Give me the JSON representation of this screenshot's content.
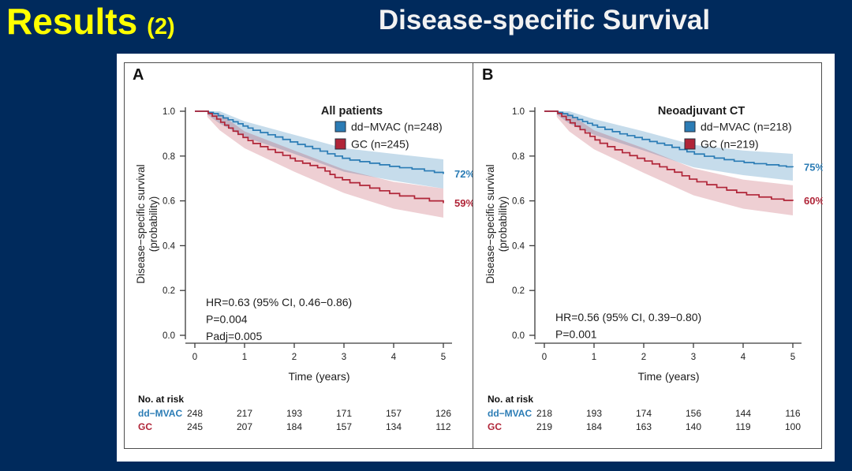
{
  "slide": {
    "title_left": "Results",
    "title_left_suffix": "(2)",
    "title_right": "Disease-specific Survival"
  },
  "colors": {
    "background": "#002a5c",
    "title_yellow": "#ffff00",
    "title_white": "#f2f2f2",
    "card": "#ffffff",
    "frame": "#4d4d4d",
    "blue": "#2b7cb5",
    "red": "#b02538",
    "blue_band": "rgba(43,124,181,0.27)",
    "red_band": "rgba(176,37,56,0.22)",
    "legend_border": "#24303f",
    "axis": "#3a3a3a",
    "text": "#1c1c1c",
    "risk_value": "#222222",
    "risk_header": "#111111"
  },
  "chart_data": [
    {
      "type": "line",
      "panel_label": "A",
      "legend_title": "All patients",
      "xlabel": "Time (years)",
      "ylabel": [
        "Disease−specific survival",
        "(probability)"
      ],
      "xlim": [
        0,
        5
      ],
      "ylim": [
        0,
        1
      ],
      "xticks": [
        0,
        1,
        2,
        3,
        4,
        5
      ],
      "yticks": [
        "0.0",
        "0.2",
        "0.4",
        "0.6",
        "0.8",
        "1.0"
      ],
      "annotation": [
        "HR=0.63 (95% CI, 0.46−0.86)",
        "P=0.004",
        "Padj=0.005"
      ],
      "series": [
        {
          "name": "dd−MVAC (n=248)",
          "color_key": "blue",
          "end_label": "72%",
          "points": [
            [
              0,
              1.0
            ],
            [
              0.27,
              0.995
            ],
            [
              0.37,
              0.99
            ],
            [
              0.47,
              0.98
            ],
            [
              0.57,
              0.97
            ],
            [
              0.67,
              0.962
            ],
            [
              0.77,
              0.953
            ],
            [
              0.87,
              0.944
            ],
            [
              0.97,
              0.934
            ],
            [
              1.07,
              0.925
            ],
            [
              1.17,
              0.915
            ],
            [
              1.32,
              0.905
            ],
            [
              1.47,
              0.895
            ],
            [
              1.62,
              0.885
            ],
            [
              1.77,
              0.874
            ],
            [
              1.92,
              0.863
            ],
            [
              2.07,
              0.852
            ],
            [
              2.22,
              0.843
            ],
            [
              2.37,
              0.833
            ],
            [
              2.52,
              0.822
            ],
            [
              2.67,
              0.81
            ],
            [
              2.82,
              0.8
            ],
            [
              2.97,
              0.79
            ],
            [
              3.12,
              0.782
            ],
            [
              3.32,
              0.775
            ],
            [
              3.52,
              0.768
            ],
            [
              3.72,
              0.761
            ],
            [
              3.92,
              0.754
            ],
            [
              4.12,
              0.748
            ],
            [
              4.37,
              0.742
            ],
            [
              4.62,
              0.734
            ],
            [
              4.82,
              0.727
            ],
            [
              5,
              0.72
            ]
          ],
          "ci_upper": [
            [
              0.25,
              1.0
            ],
            [
              0.5,
              1.0
            ],
            [
              1,
              0.955
            ],
            [
              2,
              0.895
            ],
            [
              3,
              0.835
            ],
            [
              4,
              0.81
            ],
            [
              5,
              0.785
            ]
          ],
          "ci_lower": [
            [
              0.25,
              0.985
            ],
            [
              0.5,
              0.945
            ],
            [
              1,
              0.885
            ],
            [
              2,
              0.81
            ],
            [
              3,
              0.73
            ],
            [
              4,
              0.69
            ],
            [
              5,
              0.655
            ]
          ]
        },
        {
          "name": "GC (n=245)",
          "color_key": "red",
          "end_label": "59%",
          "points": [
            [
              0,
              1.0
            ],
            [
              0.27,
              0.99
            ],
            [
              0.35,
              0.978
            ],
            [
              0.44,
              0.965
            ],
            [
              0.52,
              0.951
            ],
            [
              0.6,
              0.938
            ],
            [
              0.68,
              0.925
            ],
            [
              0.77,
              0.911
            ],
            [
              0.87,
              0.897
            ],
            [
              0.97,
              0.883
            ],
            [
              1.07,
              0.869
            ],
            [
              1.17,
              0.856
            ],
            [
              1.32,
              0.842
            ],
            [
              1.47,
              0.829
            ],
            [
              1.62,
              0.816
            ],
            [
              1.77,
              0.803
            ],
            [
              1.92,
              0.79
            ],
            [
              2.02,
              0.778
            ],
            [
              2.17,
              0.768
            ],
            [
              2.32,
              0.758
            ],
            [
              2.47,
              0.748
            ],
            [
              2.62,
              0.733
            ],
            [
              2.72,
              0.718
            ],
            [
              2.82,
              0.704
            ],
            [
              2.97,
              0.694
            ],
            [
              3.12,
              0.681
            ],
            [
              3.32,
              0.669
            ],
            [
              3.52,
              0.657
            ],
            [
              3.72,
              0.645
            ],
            [
              3.92,
              0.633
            ],
            [
              4.12,
              0.622
            ],
            [
              4.42,
              0.611
            ],
            [
              4.72,
              0.6
            ],
            [
              5,
              0.59
            ]
          ],
          "ci_upper": [
            [
              0.25,
              1.0
            ],
            [
              0.5,
              0.99
            ],
            [
              1,
              0.91
            ],
            [
              2,
              0.825
            ],
            [
              3,
              0.74
            ],
            [
              4,
              0.685
            ],
            [
              5,
              0.655
            ]
          ],
          "ci_lower": [
            [
              0.25,
              0.975
            ],
            [
              0.5,
              0.915
            ],
            [
              1,
              0.835
            ],
            [
              2,
              0.73
            ],
            [
              3,
              0.635
            ],
            [
              4,
              0.565
            ],
            [
              5,
              0.525
            ]
          ]
        }
      ],
      "risk_table": {
        "header": "No. at risk",
        "rows": [
          {
            "label": "dd−MVAC",
            "color_key": "blue",
            "values": [
              248,
              217,
              193,
              171,
              157,
              126
            ]
          },
          {
            "label": "GC",
            "color_key": "red",
            "values": [
              245,
              207,
              184,
              157,
              134,
              112
            ]
          }
        ]
      }
    },
    {
      "type": "line",
      "panel_label": "B",
      "legend_title": "Neoadjuvant CT",
      "xlabel": "Time (years)",
      "ylabel": [
        "Disease−specific survival",
        "(probability)"
      ],
      "xlim": [
        0,
        5
      ],
      "ylim": [
        0,
        1
      ],
      "xticks": [
        0,
        1,
        2,
        3,
        4,
        5
      ],
      "yticks": [
        "0.0",
        "0.2",
        "0.4",
        "0.6",
        "0.8",
        "1.0"
      ],
      "annotation": [
        "HR=0.56 (95% CI, 0.39−0.80)",
        "P=0.001"
      ],
      "series": [
        {
          "name": "dd−MVAC (n=218)",
          "color_key": "blue",
          "end_label": "75%",
          "points": [
            [
              0,
              1.0
            ],
            [
              0.27,
              0.995
            ],
            [
              0.37,
              0.989
            ],
            [
              0.47,
              0.981
            ],
            [
              0.57,
              0.972
            ],
            [
              0.67,
              0.963
            ],
            [
              0.77,
              0.954
            ],
            [
              0.87,
              0.946
            ],
            [
              0.97,
              0.938
            ],
            [
              1.07,
              0.929
            ],
            [
              1.22,
              0.919
            ],
            [
              1.37,
              0.909
            ],
            [
              1.52,
              0.899
            ],
            [
              1.67,
              0.891
            ],
            [
              1.82,
              0.883
            ],
            [
              1.97,
              0.874
            ],
            [
              2.12,
              0.865
            ],
            [
              2.27,
              0.857
            ],
            [
              2.42,
              0.849
            ],
            [
              2.57,
              0.839
            ],
            [
              2.72,
              0.829
            ],
            [
              2.87,
              0.819
            ],
            [
              3.02,
              0.809
            ],
            [
              3.22,
              0.799
            ],
            [
              3.42,
              0.791
            ],
            [
              3.62,
              0.784
            ],
            [
              3.82,
              0.777
            ],
            [
              4.02,
              0.771
            ],
            [
              4.22,
              0.766
            ],
            [
              4.47,
              0.761
            ],
            [
              4.72,
              0.756
            ],
            [
              4.87,
              0.752
            ],
            [
              5,
              0.75
            ]
          ],
          "ci_upper": [
            [
              0.25,
              1.0
            ],
            [
              0.5,
              1.0
            ],
            [
              1,
              0.965
            ],
            [
              2,
              0.91
            ],
            [
              3,
              0.85
            ],
            [
              4,
              0.825
            ],
            [
              5,
              0.81
            ]
          ],
          "ci_lower": [
            [
              0.25,
              0.985
            ],
            [
              0.5,
              0.945
            ],
            [
              1,
              0.895
            ],
            [
              2,
              0.825
            ],
            [
              3,
              0.75
            ],
            [
              4,
              0.715
            ],
            [
              5,
              0.69
            ]
          ]
        },
        {
          "name": "GC (n=219)",
          "color_key": "red",
          "end_label": "60%",
          "points": [
            [
              0,
              1.0
            ],
            [
              0.27,
              0.99
            ],
            [
              0.35,
              0.977
            ],
            [
              0.44,
              0.962
            ],
            [
              0.52,
              0.948
            ],
            [
              0.62,
              0.933
            ],
            [
              0.72,
              0.918
            ],
            [
              0.82,
              0.903
            ],
            [
              0.92,
              0.888
            ],
            [
              1.02,
              0.872
            ],
            [
              1.12,
              0.857
            ],
            [
              1.27,
              0.842
            ],
            [
              1.42,
              0.828
            ],
            [
              1.57,
              0.815
            ],
            [
              1.72,
              0.802
            ],
            [
              1.87,
              0.79
            ],
            [
              2.02,
              0.778
            ],
            [
              2.17,
              0.765
            ],
            [
              2.32,
              0.752
            ],
            [
              2.47,
              0.74
            ],
            [
              2.62,
              0.728
            ],
            [
              2.77,
              0.712
            ],
            [
              2.92,
              0.697
            ],
            [
              3.07,
              0.685
            ],
            [
              3.27,
              0.672
            ],
            [
              3.47,
              0.66
            ],
            [
              3.67,
              0.648
            ],
            [
              3.87,
              0.637
            ],
            [
              4.07,
              0.627
            ],
            [
              4.32,
              0.617
            ],
            [
              4.57,
              0.608
            ],
            [
              4.82,
              0.602
            ],
            [
              5,
              0.6
            ]
          ],
          "ci_upper": [
            [
              0.25,
              1.0
            ],
            [
              0.5,
              0.99
            ],
            [
              1,
              0.915
            ],
            [
              2,
              0.835
            ],
            [
              3,
              0.745
            ],
            [
              4,
              0.695
            ],
            [
              5,
              0.67
            ]
          ],
          "ci_lower": [
            [
              0.25,
              0.975
            ],
            [
              0.5,
              0.91
            ],
            [
              1,
              0.83
            ],
            [
              2,
              0.725
            ],
            [
              3,
              0.625
            ],
            [
              4,
              0.565
            ],
            [
              5,
              0.535
            ]
          ]
        }
      ],
      "risk_table": {
        "header": "No. at risk",
        "rows": [
          {
            "label": "dd−MVAC",
            "color_key": "blue",
            "values": [
              218,
              193,
              174,
              156,
              144,
              116
            ]
          },
          {
            "label": "GC",
            "color_key": "red",
            "values": [
              219,
              184,
              163,
              140,
              119,
              100
            ]
          }
        ]
      }
    }
  ]
}
